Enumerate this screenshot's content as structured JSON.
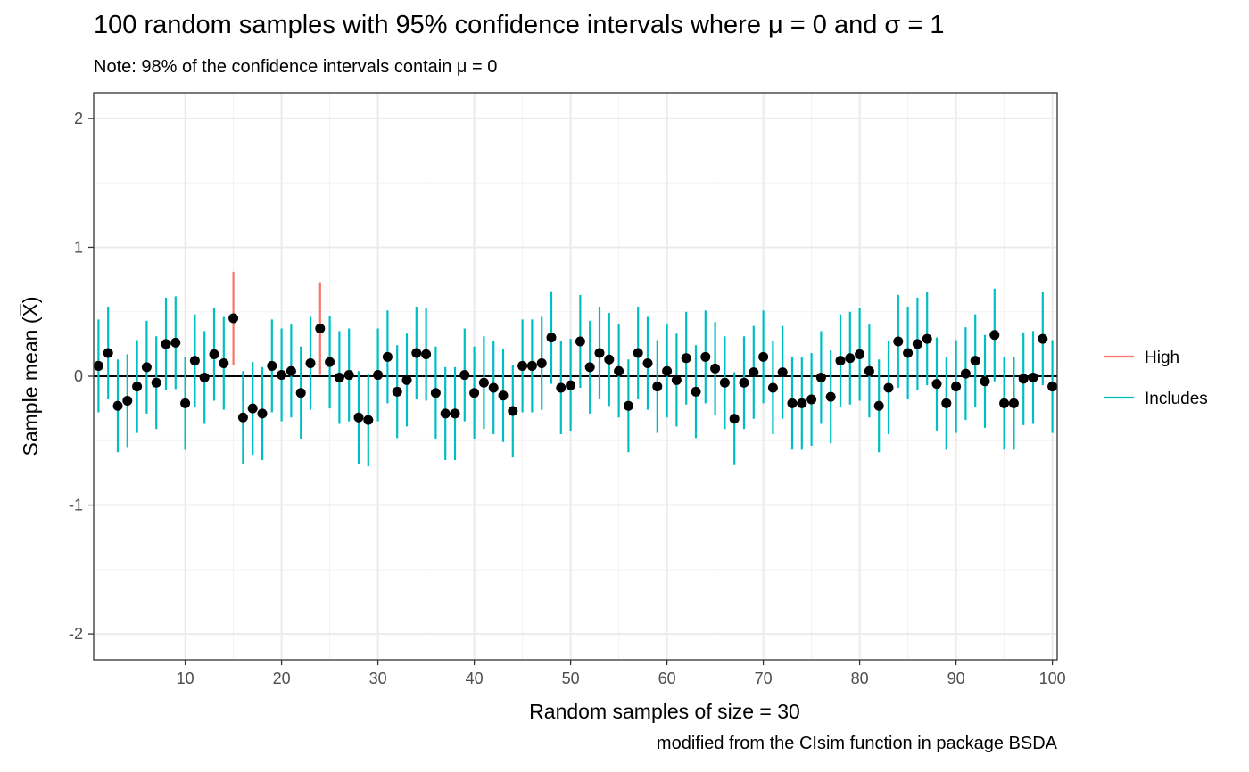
{
  "chart_data": {
    "type": "scatter",
    "title": "100 random samples with 95% confidence intervals where μ = 0 and σ = 1",
    "subtitle": "Note: 98% of the confidence intervals contain μ = 0",
    "caption": "modified from the CIsim function in package BSDA",
    "xlabel": "Random samples of size = 30",
    "ylabel": "Sample mean (X̅)",
    "xlim": [
      0.5,
      100.5
    ],
    "ylim": [
      -2.2,
      2.2
    ],
    "x_ticks": [
      10,
      20,
      30,
      40,
      50,
      60,
      70,
      80,
      90,
      100
    ],
    "y_ticks": [
      -2,
      -1,
      0,
      1,
      2
    ],
    "grid": true,
    "reference_line_y": 0,
    "half_width": 0.36,
    "legend_position": "right",
    "series": [
      {
        "name": "High",
        "color": "#f8766d"
      },
      {
        "name": "Includes",
        "color": "#00bfc4"
      }
    ],
    "x": [
      1,
      2,
      3,
      4,
      5,
      6,
      7,
      8,
      9,
      10,
      11,
      12,
      13,
      14,
      15,
      16,
      17,
      18,
      19,
      20,
      21,
      22,
      23,
      24,
      25,
      26,
      27,
      28,
      29,
      30,
      31,
      32,
      33,
      34,
      35,
      36,
      37,
      38,
      39,
      40,
      41,
      42,
      43,
      44,
      45,
      46,
      47,
      48,
      49,
      50,
      51,
      52,
      53,
      54,
      55,
      56,
      57,
      58,
      59,
      60,
      61,
      62,
      63,
      64,
      65,
      66,
      67,
      68,
      69,
      70,
      71,
      72,
      73,
      74,
      75,
      76,
      77,
      78,
      79,
      80,
      81,
      82,
      83,
      84,
      85,
      86,
      87,
      88,
      89,
      90,
      91,
      92,
      93,
      94,
      95,
      96,
      97,
      98,
      99,
      100
    ],
    "means": [
      0.08,
      0.18,
      -0.23,
      -0.19,
      -0.08,
      0.07,
      -0.05,
      0.25,
      0.26,
      -0.21,
      0.12,
      -0.01,
      0.17,
      0.1,
      0.45,
      -0.32,
      -0.25,
      -0.29,
      0.08,
      0.01,
      0.04,
      -0.13,
      0.1,
      0.37,
      0.11,
      -0.01,
      0.01,
      -0.32,
      -0.34,
      0.01,
      0.15,
      -0.12,
      -0.03,
      0.18,
      0.17,
      -0.13,
      -0.29,
      -0.29,
      0.01,
      -0.13,
      -0.05,
      -0.09,
      -0.15,
      -0.27,
      0.08,
      0.08,
      0.1,
      0.3,
      -0.09,
      -0.07,
      0.27,
      0.07,
      0.18,
      0.13,
      0.04,
      -0.23,
      0.18,
      0.1,
      -0.08,
      0.04,
      -0.03,
      0.14,
      -0.12,
      0.15,
      0.06,
      -0.05,
      -0.33,
      -0.05,
      0.03,
      0.15,
      -0.09,
      0.03,
      -0.21,
      -0.21,
      -0.18,
      -0.01,
      -0.16,
      0.12,
      0.14,
      0.17,
      0.04,
      -0.23,
      -0.09,
      0.27,
      0.18,
      0.25,
      0.29,
      -0.06,
      -0.21,
      -0.08,
      0.02,
      0.12,
      -0.04,
      0.32,
      -0.21,
      -0.21,
      -0.02,
      -0.01,
      0.29,
      -0.08
    ],
    "status": [
      "Includes",
      "Includes",
      "Includes",
      "Includes",
      "Includes",
      "Includes",
      "Includes",
      "Includes",
      "Includes",
      "Includes",
      "Includes",
      "Includes",
      "Includes",
      "Includes",
      "High",
      "Includes",
      "Includes",
      "Includes",
      "Includes",
      "Includes",
      "Includes",
      "Includes",
      "Includes",
      "High",
      "Includes",
      "Includes",
      "Includes",
      "Includes",
      "Includes",
      "Includes",
      "Includes",
      "Includes",
      "Includes",
      "Includes",
      "Includes",
      "Includes",
      "Includes",
      "Includes",
      "Includes",
      "Includes",
      "Includes",
      "Includes",
      "Includes",
      "Includes",
      "Includes",
      "Includes",
      "Includes",
      "Includes",
      "Includes",
      "Includes",
      "Includes",
      "Includes",
      "Includes",
      "Includes",
      "Includes",
      "Includes",
      "Includes",
      "Includes",
      "Includes",
      "Includes",
      "Includes",
      "Includes",
      "Includes",
      "Includes",
      "Includes",
      "Includes",
      "Includes",
      "Includes",
      "Includes",
      "Includes",
      "Includes",
      "Includes",
      "Includes",
      "Includes",
      "Includes",
      "Includes",
      "Includes",
      "Includes",
      "Includes",
      "Includes",
      "Includes",
      "Includes",
      "Includes",
      "Includes",
      "Includes",
      "Includes",
      "Includes",
      "Includes",
      "Includes",
      "Includes",
      "Includes",
      "Includes",
      "Includes",
      "Includes",
      "Includes",
      "Includes",
      "Includes",
      "Includes",
      "Includes",
      "Includes"
    ]
  }
}
